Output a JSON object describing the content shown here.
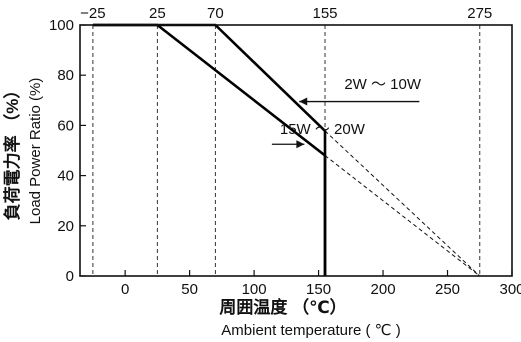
{
  "chart_data": {
    "type": "line",
    "xlabel": "周囲温度 （℃）",
    "xlabel_en": "Ambient temperature ( ℃ )",
    "ylabel": "負荷電力率 （%）",
    "ylabel_en": "Load Power Ratio (%)",
    "xlim": [
      -35,
      300
    ],
    "ylim": [
      0,
      100
    ],
    "x_ticks": [
      0,
      50,
      100,
      150,
      200,
      250,
      300
    ],
    "y_ticks": [
      0,
      20,
      40,
      60,
      80,
      100
    ],
    "top_ticks": [
      -25,
      25,
      70,
      155,
      275
    ],
    "grid": false,
    "vertical_reference_lines": [
      -25,
      25,
      70,
      155,
      275
    ],
    "series": [
      {
        "name": "2W ～ 10W",
        "solid": [
          [
            -25,
            100
          ],
          [
            70,
            100
          ],
          [
            155,
            57.8
          ],
          [
            155,
            0
          ]
        ],
        "dashed": [
          [
            155,
            57.8
          ],
          [
            275,
            0
          ]
        ]
      },
      {
        "name": "15W ～ 20W",
        "solid": [
          [
            -25,
            100
          ],
          [
            25,
            100
          ],
          [
            155,
            48.0
          ],
          [
            155,
            0
          ]
        ],
        "dashed": [
          [
            155,
            48.0
          ],
          [
            275,
            0
          ]
        ]
      }
    ],
    "annotations": [
      {
        "text": "2W ～ 10W",
        "target": [
          135,
          69.5
        ],
        "label_x": 170,
        "label_y": 74.5
      },
      {
        "text": "15W ～ 20W",
        "target": [
          139,
          52.5
        ],
        "label_x": 120,
        "label_y": 56.5
      }
    ]
  }
}
